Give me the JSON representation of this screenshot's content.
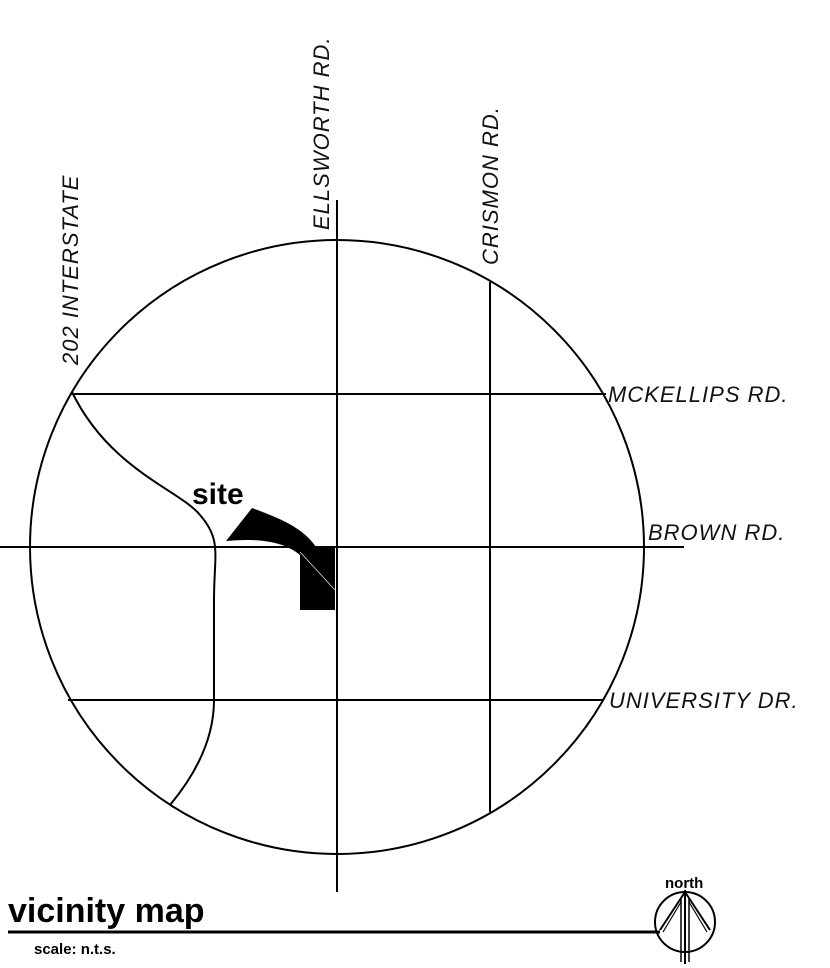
{
  "roads": {
    "interstate_202": "202 INTERSTATE",
    "ellsworth": "ELLSWORTH RD.",
    "crismon": "CRISMON RD.",
    "mckellips": "MCKELLIPS RD.",
    "brown": "BROWN RD.",
    "university": "UNIVERSITY DR."
  },
  "site_label": "site",
  "title": "vicinity map",
  "scale": "scale: n.t.s.",
  "north_label": "north",
  "colors": {
    "ink": "#000000",
    "background": "#ffffff"
  }
}
